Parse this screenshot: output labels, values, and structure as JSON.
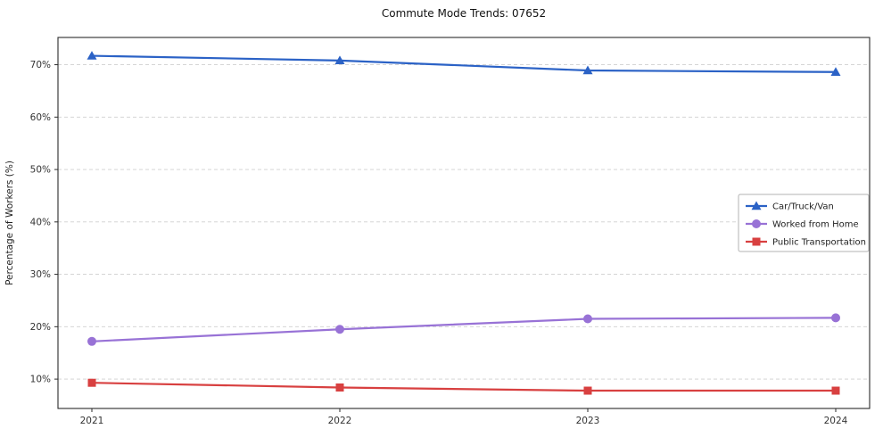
{
  "chart_data": {
    "type": "line",
    "title": "Commute Mode Trends: 07652",
    "xlabel": "",
    "ylabel": "Percentage of Workers (%)",
    "x": [
      2021,
      2022,
      2023,
      2024
    ],
    "x_labels": [
      "2021",
      "2022",
      "2023",
      "2024"
    ],
    "ylim": [
      4.4,
      75.2
    ],
    "ytick_values": [
      10,
      20,
      30,
      40,
      50,
      60,
      70
    ],
    "ytick_labels": [
      "10%",
      "20%",
      "30%",
      "40%",
      "50%",
      "60%",
      "70%"
    ],
    "grid": "horizontal-dashed",
    "legend_position": "center-right",
    "series": [
      {
        "name": "Car/Truck/Van",
        "marker": "triangle",
        "color": "#2b62c6",
        "values": [
          71.7,
          70.8,
          68.9,
          68.6
        ]
      },
      {
        "name": "Worked from Home",
        "marker": "circle",
        "color": "#9872d6",
        "values": [
          17.2,
          19.5,
          21.5,
          21.7
        ]
      },
      {
        "name": "Public Transportation",
        "marker": "square",
        "color": "#d84040",
        "values": [
          9.3,
          8.4,
          7.8,
          7.8
        ]
      }
    ],
    "colors": {
      "grid": "#cfcfcf",
      "frame": "#2b2b2b",
      "tick_text": "#333333",
      "legend_border": "#b3b3b3"
    }
  }
}
